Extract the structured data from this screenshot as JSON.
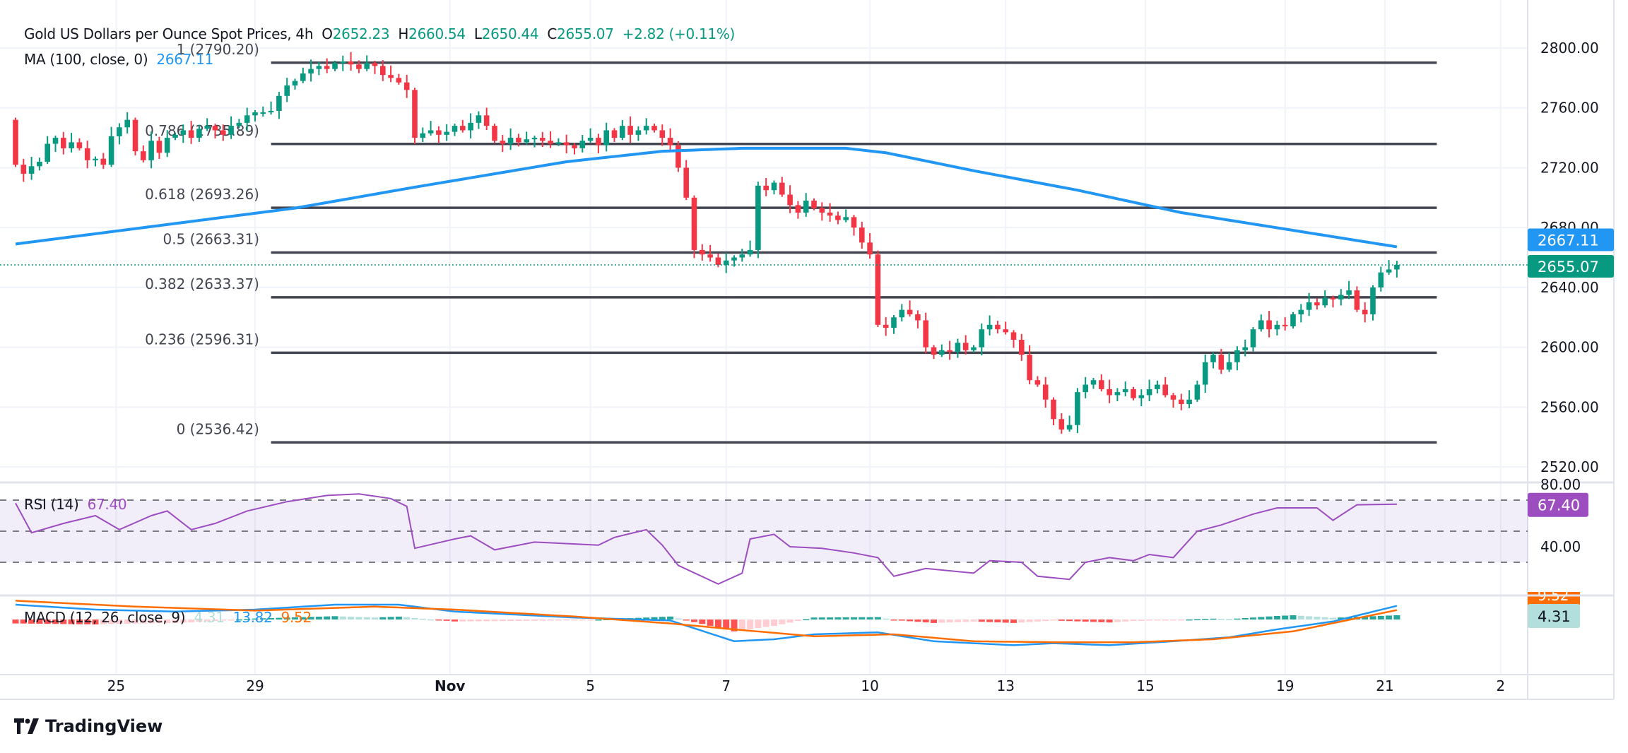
{
  "header": {
    "symbol": "Gold US Dollars per Ounce Spot Prices, 4h",
    "o_label": "O",
    "o": "2652.23",
    "h_label": "H",
    "h": "2660.54",
    "l_label": "L",
    "l": "2650.44",
    "c_label": "C",
    "c": "2655.07",
    "change": "+2.82 (+0.11%)",
    "ma_label": "MA (100, close, 0)",
    "ma_value": "2667.11"
  },
  "rsi_legend": {
    "label": "RSI (14)",
    "value": "67.40"
  },
  "macd_legend": {
    "label": "MACD (12, 26, close, 9)",
    "hist": "4.31",
    "macd": "13.82",
    "signal": "9.52"
  },
  "logo": {
    "text": "TradingView"
  },
  "colors": {
    "up": "#089981",
    "down": "#f23645",
    "ma": "#2196f3",
    "rsi": "#9c4dbf",
    "macd": "#2196f3",
    "signal": "#ff6d00",
    "fib": "#434651"
  },
  "chart_data": [
    {
      "type": "candlestick",
      "title": "Gold US Dollars per Ounce Spot Prices, 4h",
      "ylim": [
        2505,
        2820
      ],
      "y_ticks": [
        "2800.00",
        "2760.00",
        "2720.00",
        "2680.00",
        "2640.00",
        "2600.00",
        "2560.00",
        "2520.00"
      ],
      "y_tick_values": [
        2800,
        2760,
        2720,
        2680,
        2640,
        2600,
        2560,
        2520
      ],
      "x_ticks": [
        {
          "label": "25",
          "index": 12.6
        },
        {
          "label": "29",
          "index": 30
        },
        {
          "label": "Nov",
          "index": 54.4
        },
        {
          "label": "5",
          "index": 72
        },
        {
          "label": "7",
          "index": 89
        },
        {
          "label": "10",
          "index": 107
        },
        {
          "label": "13",
          "index": 124
        },
        {
          "label": "15",
          "index": 141.5
        },
        {
          "label": "19",
          "index": 159
        },
        {
          "label": "21",
          "index": 171.5
        },
        {
          "label": "2",
          "index": 186
        }
      ],
      "first_open": 2752,
      "closes": [
        2722,
        2716,
        2721,
        2724,
        2736,
        2740,
        2733,
        2737,
        2733,
        2725,
        2726,
        2722,
        2741,
        2747,
        2752,
        2731,
        2725,
        2738,
        2730,
        2740,
        2742,
        2745,
        2740,
        2746,
        2748,
        2745,
        2742,
        2748,
        2750,
        2755,
        2757,
        2757,
        2758,
        2768,
        2775,
        2778,
        2783,
        2786,
        2788,
        2786,
        2790,
        2791,
        2789,
        2786,
        2790,
        2788,
        2782,
        2780,
        2777,
        2772,
        2740,
        2743,
        2745,
        2742,
        2744,
        2748,
        2745,
        2750,
        2755,
        2748,
        2738,
        2736,
        2740,
        2737,
        2739,
        2740,
        2738,
        2736,
        2737,
        2735,
        2733,
        2738,
        2740,
        2735,
        2745,
        2740,
        2748,
        2742,
        2745,
        2748,
        2745,
        2740,
        2735,
        2720,
        2700,
        2665,
        2662,
        2660,
        2655,
        2658,
        2660,
        2662,
        2665,
        2708,
        2705,
        2710,
        2702,
        2695,
        2690,
        2698,
        2693,
        2690,
        2688,
        2685,
        2687,
        2680,
        2670,
        2662,
        2615,
        2613,
        2620,
        2625,
        2622,
        2618,
        2600,
        2595,
        2598,
        2597,
        2603,
        2598,
        2600,
        2612,
        2615,
        2612,
        2610,
        2605,
        2595,
        2578,
        2575,
        2565,
        2552,
        2545,
        2548,
        2570,
        2575,
        2578,
        2572,
        2568,
        2570,
        2572,
        2566,
        2568,
        2572,
        2575,
        2568,
        2565,
        2562,
        2565,
        2575,
        2590,
        2595,
        2585,
        2590,
        2598,
        2600,
        2612,
        2618,
        2612,
        2615,
        2614,
        2622,
        2625,
        2630,
        2628,
        2633,
        2632,
        2635,
        2638,
        2625,
        2622,
        2640,
        2650,
        2652,
        2655.07
      ],
      "ma100": [
        [
          0,
          2669
        ],
        [
          35,
          2693
        ],
        [
          50,
          2707
        ],
        [
          69,
          2724
        ],
        [
          81,
          2731
        ],
        [
          91,
          2733
        ],
        [
          104,
          2733
        ],
        [
          109,
          2730
        ],
        [
          120,
          2718
        ],
        [
          133,
          2705
        ],
        [
          146,
          2690
        ],
        [
          159,
          2679
        ],
        [
          173,
          2667.11
        ]
      ],
      "last_price": {
        "value": 2655.07,
        "label": "2655.07"
      },
      "ma_price": {
        "value": 2667.11,
        "label": "2667.11"
      },
      "fib_levels": [
        {
          "label": "1 (2790.20)",
          "value": 2790.2
        },
        {
          "label": "0.786 (2735.89)",
          "value": 2735.89
        },
        {
          "label": "0.618 (2693.26)",
          "value": 2693.26
        },
        {
          "label": "0.5 (2663.31)",
          "value": 2663.31
        },
        {
          "label": "0.382 (2633.37)",
          "value": 2633.37
        },
        {
          "label": "0.236 (2596.31)",
          "value": 2596.31
        },
        {
          "label": "0 (2536.42)",
          "value": 2536.42
        }
      ],
      "fib_range_index": [
        32,
        178
      ]
    },
    {
      "type": "line",
      "title": "RSI (14)",
      "ylim": [
        8,
        82
      ],
      "y_ticks": [
        "80.00",
        "40.00"
      ],
      "y_tick_values": [
        80,
        40
      ],
      "levels": [
        70,
        50,
        30
      ],
      "points": [
        [
          0,
          68
        ],
        [
          2,
          49
        ],
        [
          6,
          55
        ],
        [
          10,
          60
        ],
        [
          13,
          51
        ],
        [
          17,
          60
        ],
        [
          19,
          63
        ],
        [
          22,
          51
        ],
        [
          25,
          55
        ],
        [
          29,
          63
        ],
        [
          34,
          69
        ],
        [
          39,
          73
        ],
        [
          43,
          74
        ],
        [
          47,
          71
        ],
        [
          49,
          66
        ],
        [
          50,
          39
        ],
        [
          55,
          45
        ],
        [
          57,
          47
        ],
        [
          60,
          38
        ],
        [
          65,
          43
        ],
        [
          73,
          41
        ],
        [
          75,
          46
        ],
        [
          79,
          51
        ],
        [
          81,
          41
        ],
        [
          83,
          28
        ],
        [
          88,
          16
        ],
        [
          91,
          23
        ],
        [
          92,
          45
        ],
        [
          95,
          48
        ],
        [
          97,
          40
        ],
        [
          101,
          39
        ],
        [
          105,
          36
        ],
        [
          108,
          33
        ],
        [
          110,
          21
        ],
        [
          114,
          26
        ],
        [
          120,
          23
        ],
        [
          122,
          31
        ],
        [
          126,
          30
        ],
        [
          128,
          21
        ],
        [
          132,
          19
        ],
        [
          134,
          30
        ],
        [
          137,
          33
        ],
        [
          140,
          31
        ],
        [
          142,
          35
        ],
        [
          145,
          33
        ],
        [
          148,
          50
        ],
        [
          151,
          54
        ],
        [
          155,
          61
        ],
        [
          158,
          65
        ],
        [
          163,
          65
        ],
        [
          165,
          57
        ],
        [
          168,
          67
        ],
        [
          173,
          67.4
        ]
      ],
      "last": {
        "value": 67.4,
        "label": "67.40"
      }
    },
    {
      "type": "line+bar",
      "title": "MACD (12, 26, close, 9)",
      "macd": [
        [
          0,
          15
        ],
        [
          10,
          10
        ],
        [
          20,
          8
        ],
        [
          30,
          10
        ],
        [
          40,
          15
        ],
        [
          48,
          15
        ],
        [
          55,
          8
        ],
        [
          70,
          2
        ],
        [
          82,
          -1
        ],
        [
          90,
          -22
        ],
        [
          95,
          -20
        ],
        [
          100,
          -15
        ],
        [
          108,
          -13
        ],
        [
          115,
          -22
        ],
        [
          125,
          -26
        ],
        [
          130,
          -24
        ],
        [
          137,
          -26
        ],
        [
          145,
          -22
        ],
        [
          152,
          -18
        ],
        [
          158,
          -10
        ],
        [
          165,
          -2
        ],
        [
          173,
          13.82
        ]
      ],
      "signal": [
        [
          0,
          19
        ],
        [
          15,
          13
        ],
        [
          30,
          9
        ],
        [
          45,
          13
        ],
        [
          55,
          10
        ],
        [
          70,
          3
        ],
        [
          82,
          -4
        ],
        [
          90,
          -10
        ],
        [
          100,
          -17
        ],
        [
          110,
          -15
        ],
        [
          120,
          -22
        ],
        [
          130,
          -23
        ],
        [
          140,
          -23
        ],
        [
          150,
          -20
        ],
        [
          160,
          -12
        ],
        [
          173,
          9.52
        ]
      ],
      "badges": [
        {
          "label": "9.52",
          "value": 9.52
        },
        {
          "label": "4.31",
          "value": 4.31
        }
      ]
    }
  ]
}
